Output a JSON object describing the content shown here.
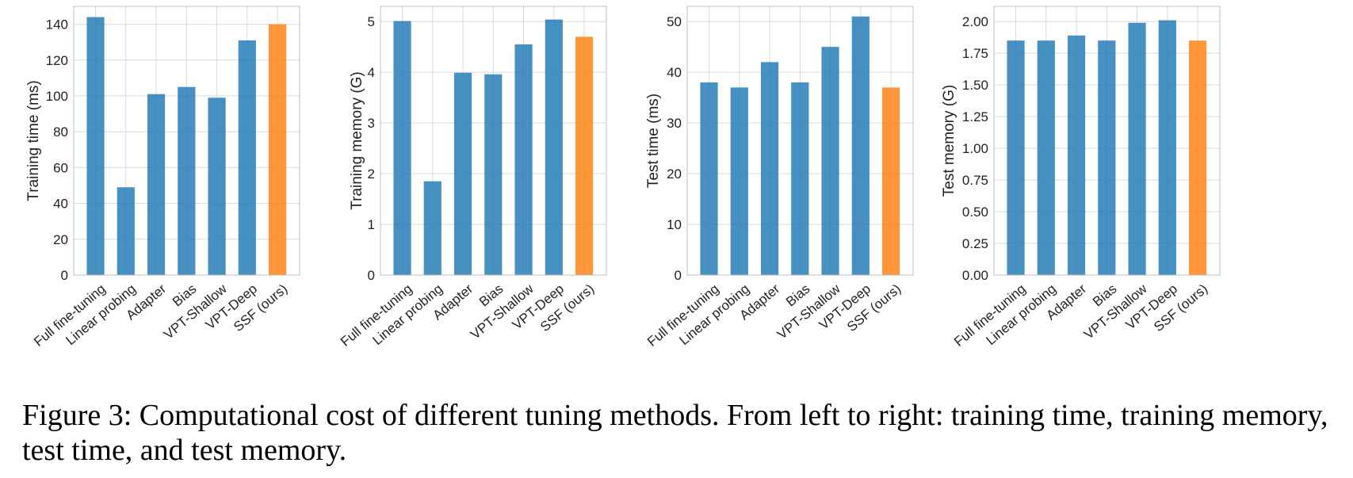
{
  "figure": {
    "caption": "Figure 3: Computational cost of different tuning methods. From left to right: training time, training memory, test time, and test memory."
  },
  "colors": {
    "baseline": "#1f77b4",
    "ours": "#ff7f0e",
    "grid": "#d9d9d9",
    "axis": "#bfbfbf"
  },
  "chart_data": [
    {
      "type": "bar",
      "title": "",
      "ylabel": "Training time (ms)",
      "xlabel": "",
      "categories": [
        "Full fine-tuning",
        "Linear probing",
        "Adapter",
        "Bias",
        "VPT-Shallow",
        "VPT-Deep",
        "SSF (ours)"
      ],
      "values": [
        144,
        49,
        101,
        105,
        99,
        131,
        140
      ],
      "highlight_index": 6,
      "ylim": [
        0,
        150
      ],
      "yticks": [
        0,
        20,
        40,
        60,
        80,
        100,
        120,
        140
      ],
      "ytick_labels": [
        "0",
        "20",
        "40",
        "60",
        "80",
        "100",
        "120",
        "140"
      ],
      "grid": true
    },
    {
      "type": "bar",
      "title": "",
      "ylabel": "Training memory (G)",
      "xlabel": "",
      "categories": [
        "Full fine-tuning",
        "Linear probing",
        "Adapter",
        "Bias",
        "VPT-Shallow",
        "VPT-Deep",
        "SSF (ours)"
      ],
      "values": [
        5.01,
        1.85,
        3.99,
        3.96,
        4.55,
        5.04,
        4.7
      ],
      "highlight_index": 6,
      "ylim": [
        0,
        5.3
      ],
      "yticks": [
        0,
        1,
        2,
        3,
        4,
        5
      ],
      "ytick_labels": [
        "0",
        "1",
        "2",
        "3",
        "4",
        "5"
      ],
      "grid": true
    },
    {
      "type": "bar",
      "title": "",
      "ylabel": "Test time (ms)",
      "xlabel": "",
      "categories": [
        "Full fine-tuning",
        "Linear probing",
        "Adapter",
        "Bias",
        "VPT-Shallow",
        "VPT-Deep",
        "SSF (ours)"
      ],
      "values": [
        38,
        37,
        42,
        38,
        45,
        51,
        37
      ],
      "highlight_index": 6,
      "ylim": [
        0,
        53
      ],
      "yticks": [
        0,
        10,
        20,
        30,
        40,
        50
      ],
      "ytick_labels": [
        "0",
        "10",
        "20",
        "30",
        "40",
        "50"
      ],
      "grid": true
    },
    {
      "type": "bar",
      "title": "",
      "ylabel": "Test memory (G)",
      "xlabel": "",
      "categories": [
        "Full fine-tuning",
        "Linear probing",
        "Adapter",
        "Bias",
        "VPT-Shallow",
        "VPT-Deep",
        "SSF (ours)"
      ],
      "values": [
        1.85,
        1.85,
        1.89,
        1.85,
        1.99,
        2.01,
        1.85
      ],
      "highlight_index": 6,
      "ylim": [
        0,
        2.12
      ],
      "yticks": [
        0,
        0.25,
        0.5,
        0.75,
        1.0,
        1.25,
        1.5,
        1.75,
        2.0
      ],
      "ytick_labels": [
        "0.00",
        "0.25",
        "0.50",
        "0.75",
        "1.00",
        "1.25",
        "1.50",
        "1.75",
        "2.00"
      ],
      "grid": true
    }
  ]
}
